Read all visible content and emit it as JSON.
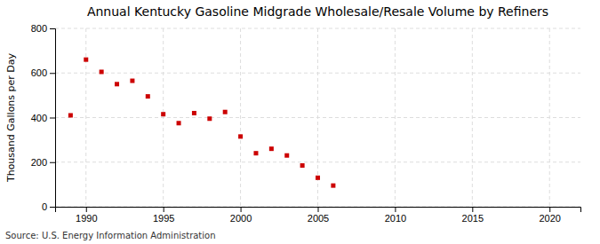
{
  "chart_data": {
    "type": "scatter",
    "title": "Annual Kentucky Gasoline Midgrade Wholesale/Resale Volume by Refiners",
    "ylabel": "Thousand Gallons per Day",
    "source": "Source: U.S. Energy Information Administration",
    "x": [
      1989,
      1990,
      1991,
      1992,
      1993,
      1994,
      1995,
      1996,
      1997,
      1998,
      1999,
      2000,
      2001,
      2002,
      2003,
      2004,
      2005,
      2006
    ],
    "values": [
      410,
      660,
      605,
      550,
      565,
      495,
      415,
      375,
      420,
      395,
      425,
      315,
      240,
      260,
      230,
      185,
      130,
      95
    ],
    "color": "#cc0000",
    "marker": "square",
    "xlim": [
      1988,
      2022
    ],
    "ylim": [
      0,
      800
    ],
    "xticks": [
      1990,
      1995,
      2000,
      2005,
      2010,
      2015,
      2020
    ],
    "yticks": [
      0,
      200,
      400,
      600,
      800
    ],
    "grid": true
  }
}
